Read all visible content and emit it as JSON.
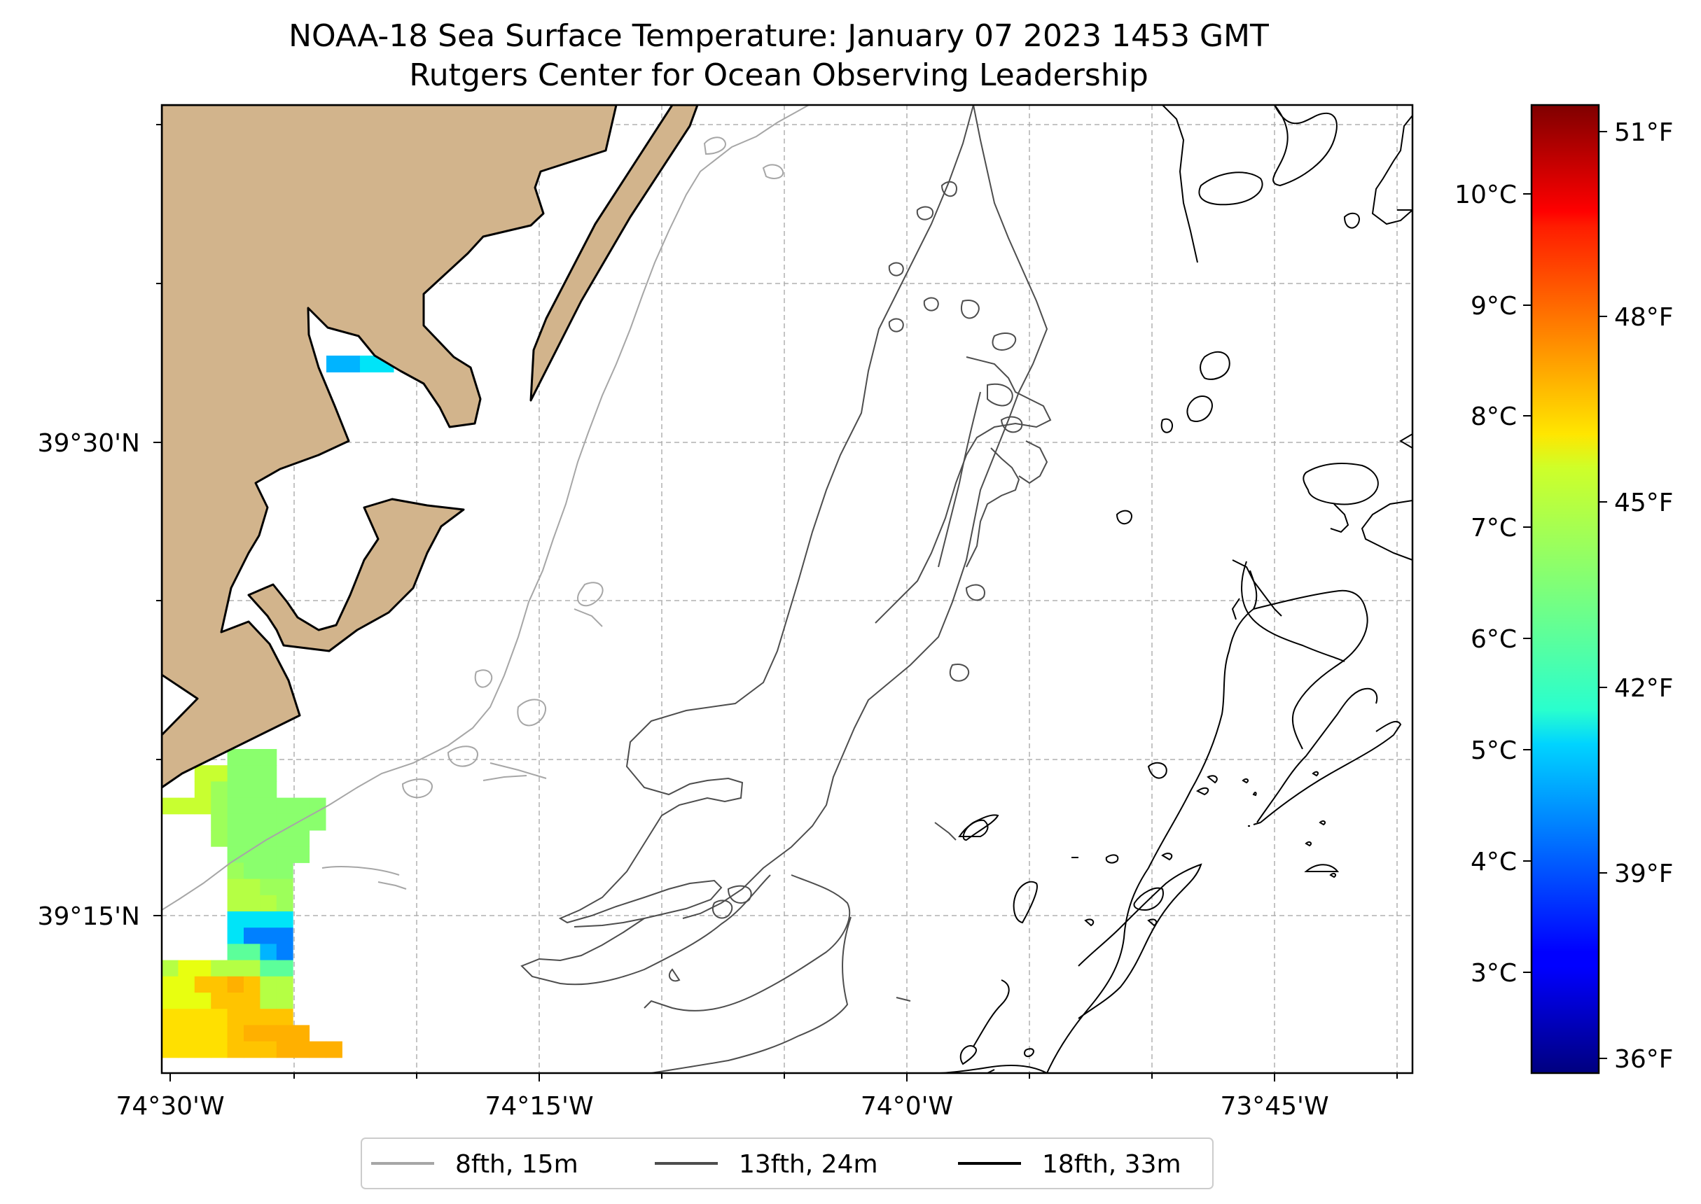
{
  "title": {
    "line1": "NOAA-18 Sea Surface Temperature: January 07 2023 1453 GMT",
    "line2": "Rutgers Center for Ocean Observing Leadership"
  },
  "map": {
    "lon_ticks": [
      "74°30'W",
      "74°15'W",
      "74°0'W",
      "73°45'W"
    ],
    "lat_ticks": [
      "39°30'N",
      "39°15'N"
    ],
    "land_color": "#d2b48c",
    "grid": true
  },
  "colorbar": {
    "colormap": "jet",
    "celsius_ticks": [
      "10°C",
      "9°C",
      "8°C",
      "7°C",
      "6°C",
      "5°C",
      "4°C",
      "3°C"
    ],
    "fahrenheit_ticks": [
      "51°F",
      "48°F",
      "45°F",
      "42°F",
      "39°F",
      "36°F"
    ]
  },
  "legend": {
    "placement": "bottom-center",
    "items": [
      {
        "label": "8fth, 15m",
        "color": "#a6a6a6"
      },
      {
        "label": "13fth, 24m",
        "color": "#4d4d4d"
      },
      {
        "label": "18fth, 33m",
        "color": "#000000"
      }
    ]
  }
}
